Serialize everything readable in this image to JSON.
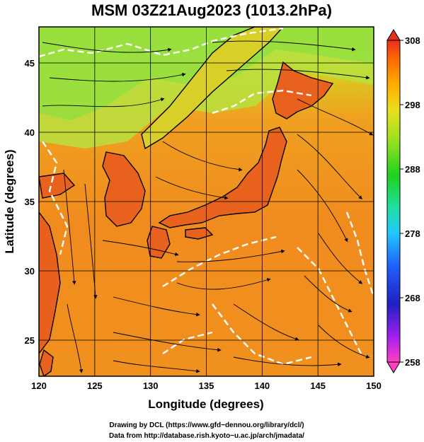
{
  "title": "MSM 03Z21Aug2023 (1013.2hPa)",
  "xaxis": {
    "label": "Longitude (degrees)",
    "ticks": [
      "120",
      "125",
      "130",
      "135",
      "140",
      "145",
      "150"
    ],
    "range": [
      120,
      150
    ]
  },
  "yaxis": {
    "label": "Latitude  (degrees)",
    "ticks": [
      "25",
      "30",
      "35",
      "40",
      "45"
    ],
    "range": [
      22.4,
      47.6
    ]
  },
  "colorbar": {
    "ticks": [
      "308",
      "298",
      "288",
      "278",
      "268",
      "258"
    ],
    "range": [
      258,
      308
    ],
    "colors": [
      "#ff40c0",
      "#a020f0",
      "#2020c0",
      "#2060ff",
      "#20c8ff",
      "#20e0a0",
      "#20d020",
      "#90e020",
      "#e8e020",
      "#ff9c00",
      "#ff6a00",
      "#e83020"
    ]
  },
  "credits": {
    "line1": "Drawing by DCL (https://www.gfd−dennou.org/library/dcl/)",
    "line2": "Data from http://database.rish.kyoto−u.ac.jp/arch/jmadata/"
  },
  "field": {
    "ocean_color": "#f08c1e",
    "north_color": "#a6e63c",
    "land_color": "#e86020",
    "coast_color": "#000000",
    "contour_color": "#ffffff"
  }
}
